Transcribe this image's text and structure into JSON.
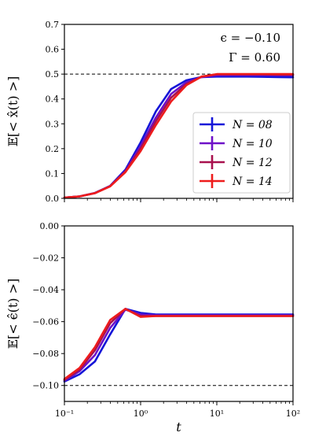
{
  "chart_data": [
    {
      "type": "line",
      "xscale": "log",
      "xlim": [
        0.1,
        100
      ],
      "ylim": [
        0,
        0.7
      ],
      "yticks": [
        "0.0",
        "0.1",
        "0.2",
        "0.3",
        "0.4",
        "0.5",
        "0.6",
        "0.7"
      ],
      "ylabel": "𝔼[< x̂(t) >]",
      "annotations": [
        "ϵ = −0.10",
        "Γ = 0.60"
      ],
      "reference_line": 0.5,
      "legend_position": "lower-right",
      "x": [
        0.1,
        0.158,
        0.251,
        0.398,
        0.631,
        1.0,
        1.585,
        2.512,
        3.981,
        6.31,
        10,
        15.85,
        25.12,
        39.81,
        63.1,
        100
      ],
      "series": [
        {
          "name": "N = 08",
          "color": "#1515d8",
          "values": [
            0.003,
            0.008,
            0.022,
            0.05,
            0.115,
            0.225,
            0.35,
            0.44,
            0.475,
            0.488,
            0.49,
            0.49,
            0.49,
            0.489,
            0.488,
            0.487
          ]
        },
        {
          "name": "N = 10",
          "color": "#6e10c8",
          "values": [
            0.003,
            0.008,
            0.021,
            0.049,
            0.11,
            0.21,
            0.325,
            0.42,
            0.467,
            0.488,
            0.495,
            0.496,
            0.496,
            0.496,
            0.495,
            0.495
          ]
        },
        {
          "name": "N = 12",
          "color": "#a8104e",
          "values": [
            0.003,
            0.008,
            0.021,
            0.049,
            0.108,
            0.2,
            0.31,
            0.405,
            0.46,
            0.49,
            0.499,
            0.499,
            0.499,
            0.499,
            0.498,
            0.498
          ]
        },
        {
          "name": "N = 14",
          "color": "#ee1c1c",
          "values": [
            0.003,
            0.008,
            0.021,
            0.048,
            0.105,
            0.19,
            0.295,
            0.39,
            0.455,
            0.49,
            0.5,
            0.5,
            0.5,
            0.5,
            0.5,
            0.5
          ]
        }
      ]
    },
    {
      "type": "line",
      "xscale": "log",
      "xlim": [
        0.1,
        100
      ],
      "ylim": [
        -0.11,
        0.0
      ],
      "yticks": [
        "0.00",
        "−0.02",
        "−0.04",
        "−0.06",
        "−0.08",
        "−0.10"
      ],
      "xticks": [
        "10⁻¹",
        "10⁰",
        "10¹",
        "10²"
      ],
      "xlabel": "t",
      "ylabel": "𝔼[< ϵ̂(t) >]",
      "reference_line": -0.1,
      "x": [
        0.1,
        0.158,
        0.251,
        0.398,
        0.631,
        1.0,
        1.585,
        2.512,
        3.981,
        6.31,
        10,
        15.85,
        25.12,
        39.81,
        63.1,
        100
      ],
      "series": [
        {
          "name": "N = 08",
          "color": "#1515d8",
          "values": [
            -0.0975,
            -0.093,
            -0.085,
            -0.068,
            -0.052,
            -0.0545,
            -0.0555,
            -0.0555,
            -0.0555,
            -0.0555,
            -0.0555,
            -0.0555,
            -0.0555,
            -0.0555,
            -0.0555,
            -0.0555
          ]
        },
        {
          "name": "N = 10",
          "color": "#6e10c8",
          "values": [
            -0.097,
            -0.091,
            -0.081,
            -0.064,
            -0.0525,
            -0.0555,
            -0.056,
            -0.056,
            -0.056,
            -0.056,
            -0.056,
            -0.056,
            -0.056,
            -0.056,
            -0.056,
            -0.056
          ]
        },
        {
          "name": "N = 12",
          "color": "#a8104e",
          "values": [
            -0.0965,
            -0.09,
            -0.078,
            -0.061,
            -0.052,
            -0.0565,
            -0.0565,
            -0.0565,
            -0.0565,
            -0.0565,
            -0.0565,
            -0.0565,
            -0.0565,
            -0.0565,
            -0.0565,
            -0.0565
          ]
        },
        {
          "name": "N = 14",
          "color": "#ee1c1c",
          "values": [
            -0.096,
            -0.089,
            -0.076,
            -0.059,
            -0.052,
            -0.057,
            -0.0565,
            -0.0565,
            -0.0565,
            -0.0565,
            -0.0565,
            -0.0565,
            -0.0565,
            -0.0565,
            -0.0565,
            -0.0565
          ]
        }
      ]
    }
  ]
}
